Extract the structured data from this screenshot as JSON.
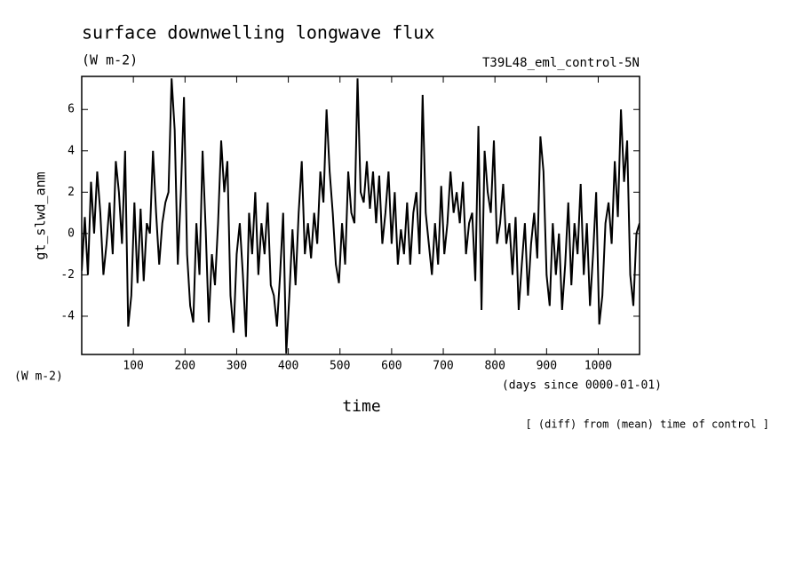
{
  "chart_data": {
    "type": "line",
    "title": "surface downwelling longwave flux",
    "subtitle": "(W m-2)",
    "annotation": "T39L48_eml_control-5N",
    "y_label": "gt_slwd_anm",
    "y_unit": "(W m-2)",
    "x_label": "time",
    "x_unit": "(days since 0000-01-01)",
    "note": "[ (diff) from (mean) time of control ]",
    "color": "#000000",
    "xlim": [
      0,
      1080
    ],
    "ylim": [
      -5.85,
      7.6
    ],
    "xticks": [
      100,
      200,
      300,
      400,
      500,
      600,
      700,
      800,
      900,
      1000
    ],
    "yticks": [
      -4,
      -2,
      0,
      2,
      4,
      6
    ],
    "x": [
      0,
      6,
      12,
      18,
      24,
      30,
      36,
      42,
      48,
      54,
      60,
      66,
      72,
      78,
      84,
      90,
      96,
      102,
      108,
      114,
      120,
      126,
      132,
      138,
      144,
      150,
      156,
      162,
      168,
      174,
      180,
      186,
      192,
      198,
      204,
      210,
      216,
      222,
      228,
      234,
      240,
      246,
      252,
      258,
      264,
      270,
      276,
      282,
      288,
      294,
      300,
      306,
      312,
      318,
      324,
      330,
      336,
      342,
      348,
      354,
      360,
      366,
      372,
      378,
      384,
      390,
      396,
      402,
      408,
      414,
      420,
      426,
      432,
      438,
      444,
      450,
      456,
      462,
      468,
      474,
      480,
      486,
      492,
      498,
      504,
      510,
      516,
      522,
      528,
      534,
      540,
      546,
      552,
      558,
      564,
      570,
      576,
      582,
      588,
      594,
      600,
      606,
      612,
      618,
      624,
      630,
      636,
      642,
      648,
      654,
      660,
      666,
      672,
      678,
      684,
      690,
      696,
      702,
      708,
      714,
      720,
      726,
      732,
      738,
      744,
      750,
      756,
      762,
      768,
      774,
      780,
      786,
      792,
      798,
      804,
      810,
      816,
      822,
      828,
      834,
      840,
      846,
      852,
      858,
      864,
      870,
      876,
      882,
      888,
      894,
      900,
      906,
      912,
      918,
      924,
      930,
      936,
      942,
      948,
      954,
      960,
      966,
      972,
      978,
      984,
      990,
      996,
      1002,
      1008,
      1014,
      1020,
      1026,
      1032,
      1038,
      1044,
      1050,
      1056,
      1062,
      1068,
      1074,
      1080
    ],
    "values": [
      -1.8,
      0.8,
      -2,
      2.5,
      0,
      3,
      1,
      -2,
      -0.5,
      1.5,
      -1,
      3.5,
      2,
      -0.5,
      4,
      -4.5,
      -3,
      1.5,
      -2.4,
      1.2,
      -2.3,
      0.5,
      0,
      4,
      1,
      -1.5,
      0.5,
      1.5,
      2,
      7.5,
      5,
      -1.5,
      2,
      6.6,
      -1,
      -3.5,
      -4.3,
      0.5,
      -2,
      4,
      0.2,
      -4.3,
      -1,
      -2.5,
      0.5,
      4.5,
      2,
      3.5,
      -3,
      -4.8,
      -1,
      0.5,
      -2,
      -5,
      1,
      -1,
      2,
      -2,
      0.5,
      -1,
      1.5,
      -2.5,
      -3,
      -4.5,
      -2,
      1,
      -5.8,
      -3,
      0.2,
      -2.5,
      1,
      3.5,
      -1,
      0.5,
      -1.2,
      1,
      -0.5,
      3,
      1.5,
      6,
      3,
      1,
      -1.5,
      -2.4,
      0.5,
      -1.5,
      3,
      1,
      0.5,
      7.5,
      2,
      1.5,
      3.5,
      1.2,
      3,
      0.5,
      2.8,
      -0.5,
      1,
      3,
      -0.5,
      2,
      -1.5,
      0.2,
      -1,
      1.5,
      -1.5,
      1,
      2,
      -1,
      6.7,
      1,
      -0.5,
      -2,
      0.5,
      -1.5,
      2.3,
      -1,
      0.5,
      3,
      1,
      2,
      0.5,
      2.5,
      -1,
      0.5,
      1,
      -2.3,
      5.2,
      -3.7,
      4,
      2,
      1,
      4.5,
      -0.5,
      0.5,
      2.4,
      -0.5,
      0.5,
      -2,
      0.8,
      -3.7,
      -1.5,
      0.5,
      -3,
      -0.5,
      1,
      -1.2,
      4.7,
      3,
      -2,
      -3.5,
      0.5,
      -2,
      0,
      -3.7,
      -1.5,
      1.5,
      -2.5,
      0.5,
      -1,
      2.4,
      -2,
      0.5,
      -3.5,
      -1,
      2,
      -4.4,
      -3,
      0.5,
      1.5,
      -0.5,
      3.5,
      0.8,
      6,
      2.5,
      4.5,
      -2,
      -3.5,
      0,
      0.5
    ]
  }
}
